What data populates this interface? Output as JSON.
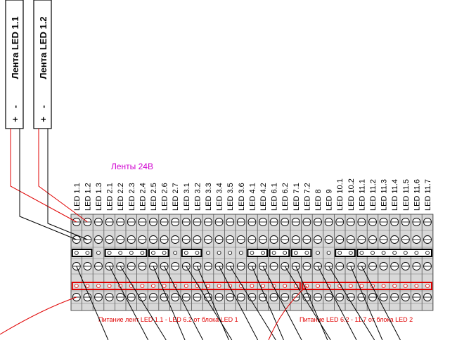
{
  "strips": [
    {
      "title": "Лента LED 1.1",
      "plus": "+",
      "minus": "-"
    },
    {
      "title": "Лента LED 1.2",
      "plus": "+",
      "minus": "-"
    }
  ],
  "group_label": "Ленты 24В",
  "terminals": [
    "LED 1.1",
    "LED 1.2",
    "LED 1.3",
    "LED 2.1",
    "LED 2.2",
    "LED 2.3",
    "LED 2.4",
    "LED 2.5",
    "LED 2.6",
    "LED 2.7",
    "LED 3.1",
    "LED 3.2",
    "LED 3.3",
    "LED 3.4",
    "LED 3.5",
    "LED 3.6",
    "LED 4.1",
    "LED 4.2",
    "LED 6.1",
    "LED 6.2",
    "LED 7.1",
    "LED 7.2",
    "LED 8",
    "LED 9",
    "LED 10.1",
    "LED 10.2",
    "LED 11.1",
    "LED 11.2",
    "LED 11.3",
    "LED 11.4",
    "LED 11.5",
    "LED 11.6",
    "LED 11.7"
  ],
  "captions": [
    "Питание лент LED 1.1 - LED 6.2 от блока LED 1",
    "Питание LED 6.2 - 11.7 от блока LED 2"
  ]
}
